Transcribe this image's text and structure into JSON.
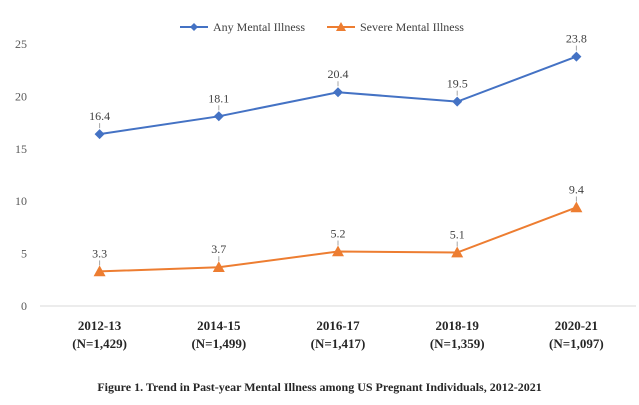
{
  "chart_data": {
    "type": "line",
    "title": "",
    "caption": "Figure 1. Trend in Past-year Mental Illness among US Pregnant Individuals, 2012-2021",
    "categories": [
      {
        "line1": "2012-13",
        "line2": "(N=1,429)"
      },
      {
        "line1": "2014-15",
        "line2": "(N=1,499)"
      },
      {
        "line1": "2016-17",
        "line2": "(N=1,417)"
      },
      {
        "line1": "2018-19",
        "line2": "(N=1,359)"
      },
      {
        "line1": "2020-21",
        "line2": "(N=1,097)"
      }
    ],
    "ylim": [
      0,
      25
    ],
    "yticks": [
      0,
      5,
      10,
      15,
      20,
      25
    ],
    "grid": false,
    "legend_position": "top-center",
    "series": [
      {
        "name": "Any Mental Illness",
        "values": [
          16.4,
          18.1,
          20.4,
          19.5,
          23.8
        ],
        "color": "#4472C4",
        "marker": "diamond"
      },
      {
        "name": "Severe Mental Illness",
        "values": [
          3.3,
          3.7,
          5.2,
          5.1,
          9.4
        ],
        "color": "#ED7D31",
        "marker": "triangle"
      }
    ]
  }
}
